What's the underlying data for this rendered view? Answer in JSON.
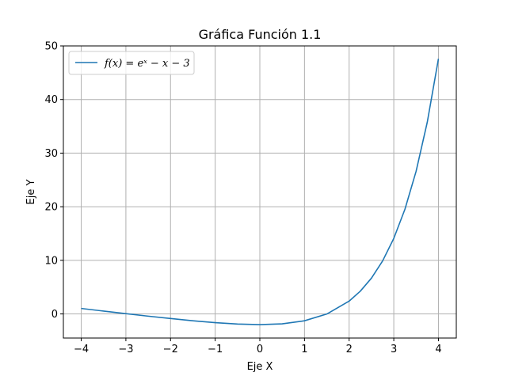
{
  "chart_data": {
    "type": "line",
    "title": "Gráfica Función 1.1",
    "xlabel": "Eje X",
    "ylabel": "Eje Y",
    "xlim": [
      -4.4,
      4.4
    ],
    "ylim": [
      -4.5,
      50
    ],
    "x_ticks": [
      -4,
      -3,
      -2,
      -1,
      0,
      1,
      2,
      3,
      4
    ],
    "x_tick_labels": [
      "−4",
      "−3",
      "−2",
      "−1",
      "0",
      "1",
      "2",
      "3",
      "4"
    ],
    "y_ticks": [
      0,
      10,
      20,
      30,
      40,
      50
    ],
    "y_tick_labels": [
      "0",
      "10",
      "20",
      "30",
      "40",
      "50"
    ],
    "grid": true,
    "legend_position": "top-left",
    "series": [
      {
        "name": "f(x) = eˣ − x − 3",
        "color": "#1f77b4",
        "x": [
          -4,
          -3.5,
          -3,
          -2.5,
          -2,
          -1.5,
          -1,
          -0.5,
          0,
          0.5,
          1,
          1.5,
          2,
          2.25,
          2.5,
          2.75,
          3,
          3.25,
          3.5,
          3.75,
          4
        ],
        "y": [
          1.02,
          0.53,
          0.05,
          -0.42,
          -0.86,
          -1.28,
          -1.63,
          -1.89,
          -2.0,
          -1.85,
          -1.28,
          -0.02,
          2.39,
          4.24,
          6.68,
          9.89,
          14.09,
          19.54,
          26.62,
          35.77,
          47.6
        ]
      }
    ]
  }
}
